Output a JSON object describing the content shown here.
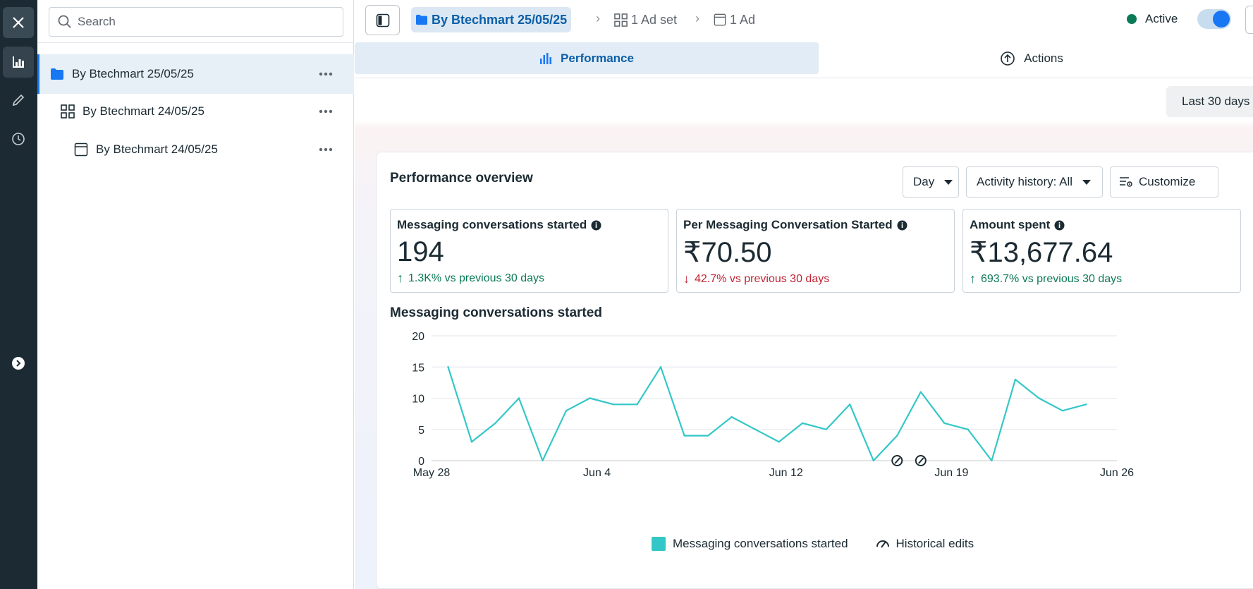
{
  "colors": {
    "accent": "#1877f2",
    "series": "#34c7c7",
    "positive": "#0b7a57",
    "negative": "#c02433"
  },
  "rail": {
    "icons": [
      "close-icon",
      "performance-chart-icon",
      "edit-pencil-icon",
      "history-clock-icon",
      "expand-arrow-icon"
    ]
  },
  "tree": {
    "search_placeholder": "Search",
    "items": [
      {
        "label": "By Btechmart 25/05/25",
        "type": "campaign",
        "selected": true
      },
      {
        "label": "By Btechmart 24/05/25",
        "type": "ad-set",
        "selected": false
      },
      {
        "label": "By Btechmart 24/05/25",
        "type": "ad",
        "selected": false
      }
    ]
  },
  "topbar": {
    "breadcrumb": {
      "campaign": "By Btechmart 25/05/25",
      "adset": "1 Ad set",
      "ad": "1 Ad"
    },
    "status": "Active",
    "toggle_on": true
  },
  "tabs": {
    "performance": "Performance",
    "actions": "Actions"
  },
  "date_range": "Last 30 days",
  "overview": {
    "title": "Performance overview",
    "controls": {
      "interval": "Day",
      "activity": "Activity history: All",
      "customize": "Customize"
    },
    "metrics": [
      {
        "label": "Messaging conversations started",
        "value": "194",
        "delta": "1.3K% vs previous 30 days",
        "direction": "up"
      },
      {
        "label": "Per Messaging Conversation Started",
        "value": "₹70.50",
        "delta": "42.7% vs previous 30 days",
        "direction": "down"
      },
      {
        "label": "Amount spent",
        "value": "₹13,677.64",
        "delta": "693.7% vs previous 30 days",
        "direction": "up"
      }
    ]
  },
  "chart_data": {
    "type": "line",
    "title": "Messaging conversations started",
    "xlabel": "",
    "ylabel": "",
    "ylim": [
      0,
      20
    ],
    "yticks": [
      0,
      5,
      10,
      15,
      20
    ],
    "xticks": [
      "May 28",
      "Jun 4",
      "Jun 12",
      "Jun 19",
      "Jun 26"
    ],
    "grid": true,
    "legend_position": "bottom-center",
    "x": [
      "May 28",
      "May 29",
      "May 30",
      "May 31",
      "Jun 1",
      "Jun 2",
      "Jun 3",
      "Jun 4",
      "Jun 5",
      "Jun 6",
      "Jun 7",
      "Jun 8",
      "Jun 9",
      "Jun 10",
      "Jun 11",
      "Jun 12",
      "Jun 13",
      "Jun 14",
      "Jun 15",
      "Jun 16",
      "Jun 17",
      "Jun 18",
      "Jun 19",
      "Jun 20",
      "Jun 21",
      "Jun 22",
      "Jun 23",
      "Jun 24"
    ],
    "series": [
      {
        "name": "Messaging conversations started",
        "values": [
          15,
          3,
          6,
          10,
          0,
          8,
          10,
          9,
          9,
          15,
          4,
          4,
          7,
          5,
          3,
          6,
          5,
          9,
          0,
          4,
          11,
          6,
          5,
          0,
          13,
          10,
          8,
          9
        ]
      }
    ],
    "historical_edits": [
      "Jun 16",
      "Jun 17"
    ],
    "legend": [
      "Messaging conversations started",
      "Historical edits"
    ]
  }
}
